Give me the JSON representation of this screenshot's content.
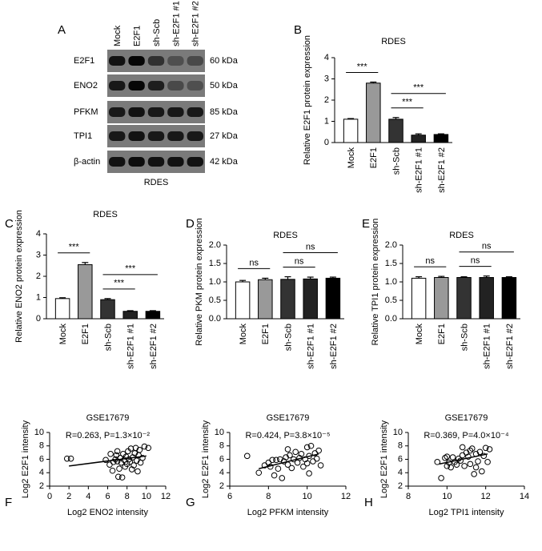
{
  "blot": {
    "panel": "A",
    "lanes": [
      "Mock",
      "E2F1",
      "sh-Scb",
      "sh-E2F1 #1",
      "sh-E2F1 #2"
    ],
    "proteins": [
      "E2F1",
      "ENO2",
      "PFKM",
      "TPI1",
      "β-actin"
    ],
    "sizes": [
      "60 kDa",
      "50 kDa",
      "85 kDa",
      "27 kDa",
      "42 kDa"
    ],
    "caption": "RDES"
  },
  "chart_data": [
    {
      "type": "bar",
      "panel": "B",
      "title": "RDES",
      "ylabel": "Relative E2F1 protein expression",
      "categories": [
        "Mock",
        "E2F1",
        "sh-Scb",
        "sh-E2F1 #1",
        "sh-E2F1 #2"
      ],
      "values": [
        1.1,
        2.8,
        1.1,
        0.35,
        0.38
      ],
      "errors": [
        0.03,
        0.05,
        0.08,
        0.06,
        0.03
      ],
      "colors": [
        "#ffffff",
        "#999999",
        "#333333",
        "#222222",
        "#000000"
      ],
      "ylim": [
        0,
        4
      ],
      "yticks": [
        0,
        1,
        2,
        3,
        4
      ],
      "annotations": [
        {
          "text": "***",
          "between": [
            "Mock",
            "E2F1"
          ]
        },
        {
          "text": "***",
          "between": [
            "sh-Scb",
            "sh-E2F1 #1"
          ]
        },
        {
          "text": "***",
          "between": [
            "sh-Scb",
            "sh-E2F1 #2"
          ]
        }
      ]
    },
    {
      "type": "bar",
      "panel": "C",
      "title": "RDES",
      "ylabel": "Relative ENO2 protein expression",
      "categories": [
        "Mock",
        "E2F1",
        "sh-Scb",
        "sh-E2F1 #1",
        "sh-E2F1 #2"
      ],
      "values": [
        0.95,
        2.55,
        0.9,
        0.35,
        0.35
      ],
      "errors": [
        0.04,
        0.1,
        0.05,
        0.03,
        0.03
      ],
      "colors": [
        "#ffffff",
        "#999999",
        "#333333",
        "#222222",
        "#000000"
      ],
      "ylim": [
        0,
        4
      ],
      "yticks": [
        0,
        1,
        2,
        3,
        4
      ],
      "annotations": [
        {
          "text": "***",
          "between": [
            "Mock",
            "E2F1"
          ]
        },
        {
          "text": "***",
          "between": [
            "sh-Scb",
            "sh-E2F1 #1"
          ]
        },
        {
          "text": "***",
          "between": [
            "sh-Scb",
            "sh-E2F1 #2"
          ]
        }
      ]
    },
    {
      "type": "bar",
      "panel": "D",
      "title": "RDES",
      "ylabel": "Relative PKM protein expression",
      "categories": [
        "Mock",
        "E2F1",
        "sh-Scb",
        "sh-E2F1 #1",
        "sh-E2F1 #2"
      ],
      "values": [
        1.0,
        1.06,
        1.07,
        1.08,
        1.1
      ],
      "errors": [
        0.04,
        0.04,
        0.07,
        0.05,
        0.03
      ],
      "colors": [
        "#ffffff",
        "#999999",
        "#333333",
        "#222222",
        "#000000"
      ],
      "ylim": [
        0,
        2
      ],
      "yticks": [
        {
          "value": 0,
          "label": "0.0"
        },
        0.5,
        {
          "value": 1,
          "label": "1.0"
        },
        1.5,
        {
          "value": 2,
          "label": "2.0"
        }
      ],
      "annotations": [
        {
          "text": "ns",
          "between": [
            "Mock",
            "E2F1"
          ]
        },
        {
          "text": "ns",
          "between": [
            "sh-Scb",
            "sh-E2F1 #1"
          ]
        },
        {
          "text": "ns",
          "between": [
            "sh-Scb",
            "sh-E2F1 #2"
          ]
        }
      ]
    },
    {
      "type": "bar",
      "panel": "E",
      "title": "RDES",
      "ylabel": "Relative TPI1 protein expression",
      "categories": [
        "Mock",
        "E2F1",
        "sh-Scb",
        "sh-E2F1 #1",
        "sh-E2F1 #2"
      ],
      "values": [
        1.1,
        1.12,
        1.12,
        1.12,
        1.12
      ],
      "errors": [
        0.04,
        0.03,
        0.02,
        0.04,
        0.02
      ],
      "colors": [
        "#ffffff",
        "#999999",
        "#333333",
        "#222222",
        "#000000"
      ],
      "ylim": [
        0,
        2
      ],
      "yticks": [
        {
          "value": 0,
          "label": "0.0"
        },
        0.5,
        {
          "value": 1,
          "label": "1.0"
        },
        1.5,
        {
          "value": 2,
          "label": "2.0"
        }
      ],
      "annotations": [
        {
          "text": "ns",
          "between": [
            "Mock",
            "E2F1"
          ]
        },
        {
          "text": "ns",
          "between": [
            "sh-Scb",
            "sh-E2F1 #1"
          ]
        },
        {
          "text": "ns",
          "between": [
            "sh-Scb",
            "sh-E2F1 #2"
          ]
        }
      ]
    },
    {
      "type": "scatter",
      "panel": "F",
      "title": "GSE17679",
      "stats": "R=0.263, P=1.3×10⁻²",
      "xlabel": "Log2 ENO2 intensity",
      "ylabel": "Log2 E2F1 intensity",
      "color": "#000000",
      "x": [
        1.8,
        2.2,
        5.8,
        6.2,
        6.5,
        6.6,
        6.8,
        6.9,
        7.0,
        7.1,
        7.2,
        7.3,
        7.4,
        7.5,
        7.6,
        7.7,
        7.8,
        7.9,
        8.0,
        8.1,
        8.2,
        8.3,
        8.4,
        8.5,
        8.6,
        8.7,
        8.8,
        8.9,
        9.0,
        9.1,
        9.2,
        9.3,
        9.4,
        9.6,
        9.8,
        10.2,
        7.0,
        6.3
      ],
      "y": [
        6.1,
        6.1,
        5.9,
        5.2,
        4.3,
        5.6,
        6.0,
        6.6,
        5.7,
        3.4,
        4.6,
        6.2,
        5.5,
        3.3,
        6.8,
        5.9,
        4.9,
        6.4,
        5.3,
        7.2,
        6.0,
        5.6,
        7.6,
        4.5,
        6.3,
        5.1,
        6.9,
        7.7,
        5.8,
        4.2,
        6.6,
        7.4,
        5.5,
        6.2,
        7.9,
        7.7,
        7.2,
        6.8
      ],
      "fit": {
        "x": [
          2,
          10
        ],
        "y": [
          5.0,
          6.5
        ]
      },
      "xlim": [
        0,
        12
      ],
      "xticks": [
        0,
        2,
        4,
        6,
        8,
        10,
        12
      ],
      "ylim": [
        2,
        10
      ],
      "yticks": [
        2,
        4,
        6,
        8,
        10
      ]
    },
    {
      "type": "scatter",
      "panel": "G",
      "title": "GSE17679",
      "stats": "R=0.424, P=3.8×10⁻⁵",
      "xlabel": "Log2 PFKM intensity",
      "ylabel": "Log2 E2F1 intensity",
      "color": "#000000",
      "x": [
        6.9,
        7.5,
        7.8,
        8.0,
        8.2,
        8.3,
        8.4,
        8.5,
        8.6,
        8.7,
        8.8,
        8.9,
        9.0,
        9.1,
        9.2,
        9.3,
        9.4,
        9.5,
        9.6,
        9.7,
        9.8,
        9.9,
        10.0,
        10.0,
        10.1,
        10.2,
        10.3,
        10.4,
        10.5,
        10.6,
        10.1,
        9.0,
        8.1,
        10.7
      ],
      "y": [
        6.5,
        4.0,
        5.1,
        5.5,
        5.9,
        3.6,
        5.9,
        4.6,
        6.0,
        3.2,
        5.7,
        6.3,
        5.2,
        6.6,
        4.7,
        6.0,
        7.1,
        5.5,
        6.2,
        6.8,
        4.9,
        6.0,
        7.8,
        5.4,
        6.5,
        8.0,
        5.7,
        6.9,
        6.1,
        7.3,
        3.9,
        7.5,
        4.9,
        5.1
      ],
      "fit": {
        "x": [
          7.5,
          10.6
        ],
        "y": [
          4.6,
          6.8
        ]
      },
      "xlim": [
        6,
        12
      ],
      "xticks": [
        6,
        8,
        10,
        12
      ],
      "ylim": [
        2,
        10
      ],
      "yticks": [
        2,
        4,
        6,
        8,
        10
      ]
    },
    {
      "type": "scatter",
      "panel": "H",
      "title": "GSE17679",
      "stats": "R=0.369, P=4.0×10⁻⁴",
      "xlabel": "Log2 TPI1 intensity",
      "ylabel": "Log2 E2F1 intensity",
      "color": "#000000",
      "x": [
        9.5,
        9.7,
        9.9,
        10.0,
        10.1,
        10.2,
        10.3,
        10.4,
        10.5,
        10.6,
        10.7,
        10.8,
        10.9,
        11.0,
        11.1,
        11.2,
        11.3,
        11.4,
        11.5,
        11.6,
        11.7,
        11.8,
        11.9,
        12.0,
        12.1,
        10.8,
        11.2,
        10.0,
        11.5,
        12.2
      ],
      "y": [
        5.6,
        3.2,
        6.2,
        5.0,
        5.5,
        4.8,
        6.3,
        5.6,
        5.2,
        6.1,
        5.8,
        6.6,
        5.0,
        7.0,
        6.4,
        5.3,
        7.6,
        3.8,
        6.8,
        5.7,
        7.1,
        4.2,
        6.5,
        7.7,
        5.6,
        7.8,
        7.3,
        6.4,
        4.8,
        7.5
      ],
      "fit": {
        "x": [
          9.6,
          12.1
        ],
        "y": [
          5.3,
          6.8
        ]
      },
      "xlim": [
        8,
        14
      ],
      "xticks": [
        8,
        10,
        12,
        14
      ],
      "ylim": [
        2,
        10
      ],
      "yticks": [
        2,
        4,
        6,
        8,
        10
      ]
    }
  ]
}
